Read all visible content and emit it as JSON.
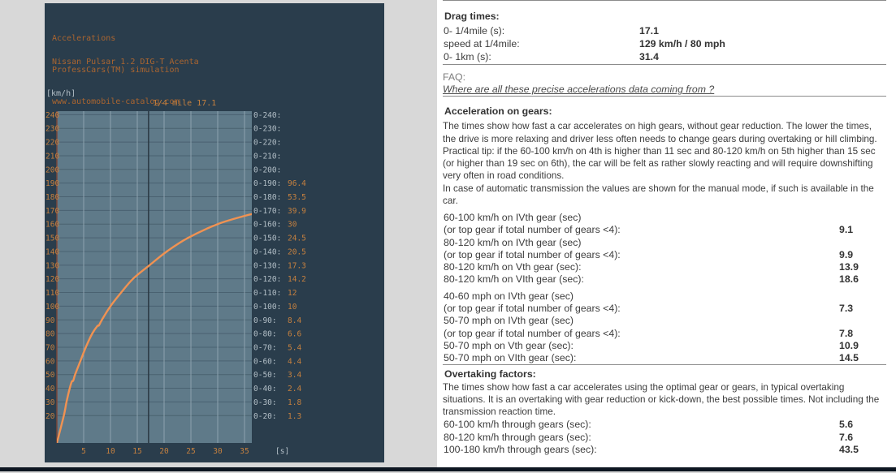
{
  "colors": {
    "page_bg": "#d8d8d8",
    "panel_bg": "#2a3d4c",
    "plot_bg": "#5f7a89",
    "curve": "#f09252",
    "orange_text": "#c5803f",
    "header_text": "#aa6530",
    "silver_text": "#b3bfc7",
    "grid_h": "#4a6271",
    "grid_v": "#8ea3ae",
    "marker_line": "#2a3842",
    "axis_line": "#7a463a",
    "rule": "#8c8c8c",
    "text": "#3c3c3c",
    "strip": "#0d1621"
  },
  "chart_panel": {
    "header_lines": [
      "Accelerations",
      "ProfessCars(TM) simulation",
      "www.automobile-catalog.com"
    ],
    "car_name": "Nissan Pulsar 1.2 DIG-T Acenta",
    "y_unit": "[km/h]",
    "x_unit": "[s]",
    "marker_label": "1/4 mile 17.1"
  },
  "chart_data": {
    "type": "line",
    "title": "Nissan Pulsar 1.2 DIG-T Acenta acceleration simulation",
    "xlabel": "[s]",
    "ylabel": "[km/h]",
    "xlim": [
      0,
      36.5
    ],
    "ylim": [
      0,
      243
    ],
    "grid": true,
    "x_ticks": [
      5,
      10,
      15,
      20,
      25,
      30,
      35
    ],
    "y_ticks": [
      240,
      230,
      220,
      210,
      200,
      190,
      180,
      170,
      160,
      150,
      140,
      130,
      120,
      110,
      100,
      90,
      80,
      70,
      60,
      50,
      40,
      30,
      20
    ],
    "marker": {
      "time": 17.1,
      "label": "1/4 mile 17.1"
    },
    "points": [
      [
        0,
        0
      ],
      [
        1.3,
        20
      ],
      [
        1.8,
        30
      ],
      [
        2.4,
        40
      ],
      [
        2.8,
        45
      ],
      [
        3.05,
        45.5
      ],
      [
        3.4,
        50
      ],
      [
        4.4,
        60
      ],
      [
        5.4,
        70
      ],
      [
        6.6,
        80
      ],
      [
        7.55,
        85.5
      ],
      [
        7.85,
        86
      ],
      [
        8.4,
        90
      ],
      [
        10,
        100
      ],
      [
        12,
        110
      ],
      [
        14.2,
        120
      ],
      [
        17.3,
        130
      ],
      [
        20.5,
        140
      ],
      [
        24.5,
        150
      ],
      [
        30,
        160
      ],
      [
        35,
        166
      ],
      [
        36.6,
        167.5
      ]
    ],
    "speed_times": [
      {
        "label": "0-240:",
        "value": ""
      },
      {
        "label": "0-230:",
        "value": ""
      },
      {
        "label": "0-220:",
        "value": ""
      },
      {
        "label": "0-210:",
        "value": ""
      },
      {
        "label": "0-200:",
        "value": ""
      },
      {
        "label": "0-190:",
        "value": "96.4"
      },
      {
        "label": "0-180:",
        "value": "53.5"
      },
      {
        "label": "0-170:",
        "value": "39.9"
      },
      {
        "label": "0-160:",
        "value": "30"
      },
      {
        "label": "0-150:",
        "value": "24.5"
      },
      {
        "label": "0-140:",
        "value": "20.5"
      },
      {
        "label": "0-130:",
        "value": "17.3"
      },
      {
        "label": "0-120:",
        "value": "14.2"
      },
      {
        "label": "0-110:",
        "value": "12"
      },
      {
        "label": "0-100:",
        "value": "10"
      },
      {
        "label": "0-90:",
        "value": "8.4"
      },
      {
        "label": "0-80:",
        "value": "6.6"
      },
      {
        "label": "0-70:",
        "value": "5.4"
      },
      {
        "label": "0-60:",
        "value": "4.4"
      },
      {
        "label": "0-50:",
        "value": "3.4"
      },
      {
        "label": "0-40:",
        "value": "2.4"
      },
      {
        "label": "0-30:",
        "value": "1.8"
      },
      {
        "label": "0-20:",
        "value": "1.3"
      }
    ]
  },
  "right_panel": {
    "drag_times": {
      "heading": "Drag times:",
      "rows": [
        {
          "label": "0- 1/4mile (s):",
          "value": "17.1"
        },
        {
          "label": "speed at 1/4mile:",
          "value": "129 km/h / 80 mph"
        },
        {
          "label": "0- 1km (s):",
          "value": "31.4"
        }
      ]
    },
    "faq": {
      "label": "FAQ:",
      "link_text": "Where are all these precise accelerations data coming from ?"
    },
    "gears": {
      "heading": "Acceleration on gears:",
      "description": "The times show how fast a car accelerates on high gears, without gear reduction. The lower the times, the drive is more relaxing and driver less often needs to change gears during overtaking or hill climbing. Practical tip: if the 60-100 km/h on 4th is higher than 11 sec and 80-120 km/h on 5th higher than 15 sec (or higher than 19 sec on 6th), the car will be felt as rather slowly reacting and will require downshifting very often in road conditions.",
      "note": "In case of automatic transmission the values are shown for the manual mode, if such is available in the car.",
      "rows": [
        {
          "label": "60-100 km/h on IVth gear (sec)",
          "value": ""
        },
        {
          "label": "(or top gear if total number of gears <4):",
          "value": "9.1"
        },
        {
          "label": "80-120 km/h on IVth gear (sec)",
          "value": ""
        },
        {
          "label": "(or top gear if total number of gears <4):",
          "value": "9.9"
        },
        {
          "label": "80-120 km/h on Vth gear (sec):",
          "value": "13.9"
        },
        {
          "label": "80-120 km/h on VIth gear (sec):",
          "value": "18.6"
        },
        {
          "label": "40-60 mph on IVth gear (sec)",
          "value": "",
          "gap": true
        },
        {
          "label": "(or top gear if total number of gears <4):",
          "value": "7.3"
        },
        {
          "label": "50-70 mph on IVth gear (sec)",
          "value": ""
        },
        {
          "label": "(or top gear if total number of gears <4):",
          "value": "7.8"
        },
        {
          "label": "50-70 mph on Vth gear (sec):",
          "value": "10.9"
        },
        {
          "label": "50-70 mph on VIth gear (sec):",
          "value": "14.5"
        }
      ]
    },
    "overtaking": {
      "heading": "Overtaking factors:",
      "description": "The times show how fast a car accelerates using the optimal gear or gears, in typical overtaking situations. It is an overtaking with gear reduction or kick-down, the best possible times. Not including the transmission reaction time.",
      "rows": [
        {
          "label": "60-100 km/h through gears (sec):",
          "value": "5.6"
        },
        {
          "label": "80-120 km/h through gears (sec):",
          "value": "7.6"
        },
        {
          "label": "100-180 km/h through gears (sec):",
          "value": "43.5"
        }
      ]
    }
  }
}
